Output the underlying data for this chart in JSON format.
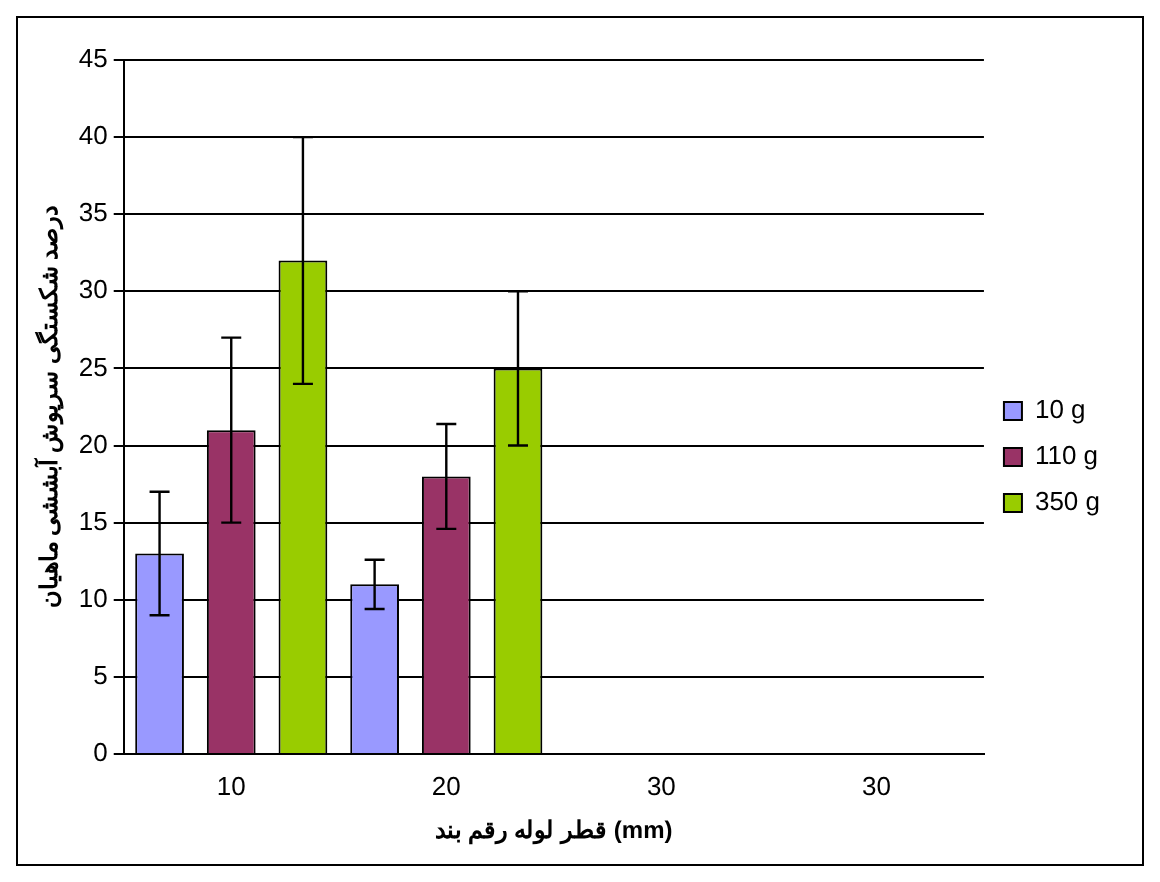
{
  "chart_data": {
    "type": "bar",
    "xlabel": "قطر لوله رقم بند (mm)",
    "ylabel": "درصد شکستگی سرپوش آبششی ماهیان",
    "categories": [
      "10",
      "20",
      "30",
      "30"
    ],
    "series": [
      {
        "name": "10 g",
        "color": "#9999ff",
        "values": [
          13,
          11,
          0,
          0
        ],
        "errors": [
          4,
          1.6,
          null,
          null
        ]
      },
      {
        "name": "110 g",
        "color": "#993366",
        "values": [
          21,
          18,
          0,
          0
        ],
        "errors": [
          6,
          3.4,
          null,
          null
        ]
      },
      {
        "name": "350 g",
        "color": "#99cc00",
        "values": [
          32,
          25,
          0,
          0
        ],
        "errors": [
          8,
          5,
          null,
          null
        ]
      }
    ],
    "ylim": [
      0,
      45
    ],
    "yticks": [
      0,
      5,
      10,
      15,
      20,
      25,
      30,
      35,
      40,
      45
    ],
    "grid": "y",
    "legend": "right"
  }
}
